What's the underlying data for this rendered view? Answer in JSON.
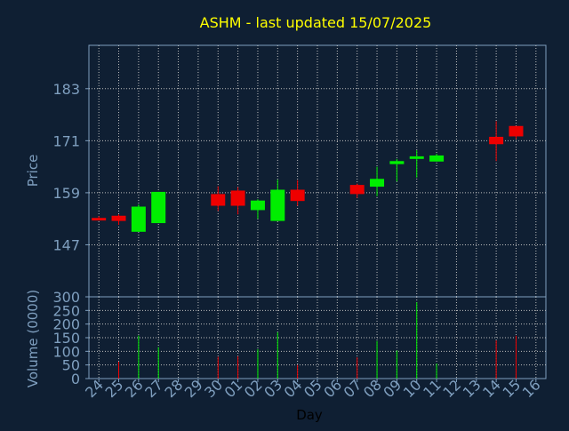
{
  "chart_data": [
    {
      "type": "candlestick",
      "title": "ASHM - last updated 15/07/2025",
      "ylabel": "Price",
      "xlabel": "",
      "ylim": [
        135,
        193
      ],
      "yticks": [
        147,
        159,
        171,
        183
      ],
      "grid": true,
      "up_color": "#00ee00",
      "down_color": "#ee0000",
      "x_tick_labels": [
        "24",
        "25",
        "26",
        "27",
        "28",
        "29",
        "30",
        "01",
        "02",
        "03",
        "04",
        "05",
        "06",
        "07",
        "08",
        "09",
        "10",
        "11",
        "12",
        "13",
        "14",
        "15",
        "16"
      ],
      "candles": [
        {
          "day": "24",
          "open": 153.2,
          "high": 153.6,
          "low": 152.6,
          "close": 152.6
        },
        {
          "day": "25",
          "open": 153.7,
          "high": 154.0,
          "low": 151.6,
          "close": 152.5
        },
        {
          "day": "26",
          "open": 150.0,
          "high": 156.3,
          "low": 150.0,
          "close": 155.8
        },
        {
          "day": "27",
          "open": 152.0,
          "high": 159.2,
          "low": 152.0,
          "close": 159.2
        },
        {
          "day": "30",
          "open": 158.7,
          "high": 160.5,
          "low": 154.8,
          "close": 156.0
        },
        {
          "day": "01",
          "open": 159.5,
          "high": 160.3,
          "low": 154.0,
          "close": 156.0
        },
        {
          "day": "02",
          "open": 155.0,
          "high": 157.5,
          "low": 153.0,
          "close": 157.2
        },
        {
          "day": "03",
          "open": 152.5,
          "high": 162.0,
          "low": 152.5,
          "close": 159.7
        },
        {
          "day": "04",
          "open": 159.7,
          "high": 161.9,
          "low": 156.0,
          "close": 157.1
        },
        {
          "day": "07",
          "open": 160.8,
          "high": 161.1,
          "low": 157.8,
          "close": 158.7
        },
        {
          "day": "08",
          "open": 160.4,
          "high": 165.0,
          "low": 158.2,
          "close": 162.2
        },
        {
          "day": "09",
          "open": 165.6,
          "high": 166.8,
          "low": 161.6,
          "close": 166.3
        },
        {
          "day": "10",
          "open": 166.8,
          "high": 168.8,
          "low": 162.5,
          "close": 167.4
        },
        {
          "day": "11",
          "open": 166.2,
          "high": 168.0,
          "low": 166.2,
          "close": 167.6
        },
        {
          "day": "14",
          "open": 171.9,
          "high": 175.5,
          "low": 166.3,
          "close": 170.2
        },
        {
          "day": "15",
          "open": 174.4,
          "high": 174.4,
          "low": 171.4,
          "close": 172.0
        }
      ]
    },
    {
      "type": "bar",
      "title": "",
      "xlabel": "Day",
      "ylabel": "Volume (0000)",
      "ylim": [
        0,
        300
      ],
      "yticks": [
        0,
        50,
        100,
        150,
        200,
        250,
        300
      ],
      "grid": true,
      "categories": [
        "25",
        "26",
        "27",
        "30",
        "01",
        "02",
        "03",
        "04",
        "07",
        "08",
        "09",
        "10",
        "11",
        "14",
        "15"
      ],
      "values": [
        62,
        158,
        115,
        80,
        82,
        108,
        170,
        50,
        78,
        138,
        103,
        280,
        55,
        140,
        157
      ],
      "colors": [
        "#ee0000",
        "#00ee00",
        "#00ee00",
        "#ee0000",
        "#ee0000",
        "#00ee00",
        "#00ee00",
        "#ee0000",
        "#ee0000",
        "#00ee00",
        "#00ee00",
        "#00ee00",
        "#00ee00",
        "#ee0000",
        "#ee0000"
      ]
    }
  ]
}
